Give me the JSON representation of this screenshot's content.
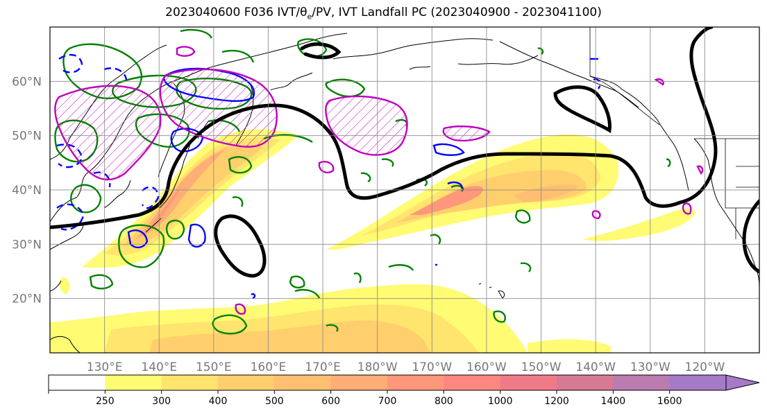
{
  "title_prefix": "2023040600 F036 IVT/",
  "title_theta": "θ",
  "title_sub": "e",
  "title_suffix": "/PV, IVT Landfall PC (2023040900 - 2023041100)",
  "map": {
    "lat_labels": [
      "60°N",
      "50°N",
      "40°N",
      "30°N",
      "20°N"
    ],
    "lat_values": [
      60,
      50,
      40,
      30,
      20
    ],
    "lon_labels": [
      "130°E",
      "140°E",
      "150°E",
      "160°E",
      "170°E",
      "180°W",
      "170°W",
      "160°W",
      "150°W",
      "140°W",
      "130°W",
      "120°W"
    ],
    "lon_values": [
      130,
      140,
      150,
      160,
      170,
      180,
      190,
      200,
      210,
      220,
      230,
      240
    ],
    "lon_range": [
      120,
      250
    ],
    "lat_range": [
      10,
      70
    ],
    "grid": true
  },
  "colorbar": {
    "levels": [
      "250",
      "300",
      "400",
      "500",
      "600",
      "700",
      "800",
      "1000",
      "1200",
      "1400",
      "1600"
    ],
    "colors": [
      "#ffffff",
      "#fffb73",
      "#ffe46e",
      "#ffcf6d",
      "#ffbf70",
      "#ffae75",
      "#ff987a",
      "#ff8780",
      "#f07b88",
      "#d77a95",
      "#bb7cb0",
      "#a57ac7"
    ],
    "extend": "max"
  },
  "contour_colors": {
    "pv_positive": "#008000",
    "pv_negative": "#0000ff",
    "theta_e": "#bf00bf",
    "landfall_pc": "#000000"
  }
}
